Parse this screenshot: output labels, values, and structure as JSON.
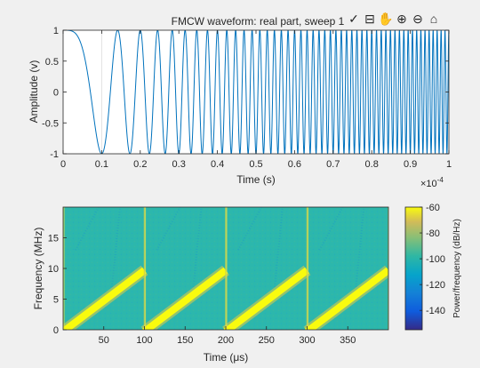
{
  "figure": {
    "background": "#f0f0f0",
    "toolbar": [
      {
        "name": "brush-icon",
        "glyph": "✓"
      },
      {
        "name": "datatips-icon",
        "glyph": "⊟"
      },
      {
        "name": "pan-icon",
        "glyph": "✋"
      },
      {
        "name": "zoom-in-icon",
        "glyph": "⊕"
      },
      {
        "name": "zoom-out-icon",
        "glyph": "⊖"
      },
      {
        "name": "home-icon",
        "glyph": "⌂"
      }
    ]
  },
  "chart_data": [
    {
      "type": "line",
      "title": "FMCW waveform: real part, sweep 1",
      "xlabel": "Time (s)",
      "ylabel": "Amplitude (v)",
      "x_exponent": "×10",
      "x_exponent_power": "-4",
      "xlim": [
        0,
        0.0001
      ],
      "ylim": [
        -1,
        1
      ],
      "xticks": [
        0,
        1e-05,
        2e-05,
        3e-05,
        4e-05,
        5e-05,
        6e-05,
        7e-05,
        8e-05,
        9e-05,
        0.0001
      ],
      "xtick_labels": [
        "0",
        "0.1",
        "0.2",
        "0.3",
        "0.4",
        "0.5",
        "0.6",
        "0.7",
        "0.8",
        "0.9",
        "1"
      ],
      "yticks": [
        -1,
        -0.5,
        0,
        0.5,
        1
      ],
      "ytick_labels": [
        "-1",
        "-0.5",
        "0",
        "0.5",
        "1"
      ],
      "grid": "x-at-0.1e-4 only",
      "series": [
        {
          "color": "#0072bd",
          "function": "cos(2*pi*(f0*t + k*t^2/2))",
          "f0_hz": 0,
          "sweep_bandwidth_hz": 1000000,
          "sweep_time_s": 0.0001
        }
      ]
    },
    {
      "type": "heatmap",
      "xlabel": "Time (μs)",
      "ylabel": "Frequency (MHz)",
      "xlim": [
        0,
        400
      ],
      "ylim": [
        0,
        20
      ],
      "xticks": [
        50,
        100,
        150,
        200,
        250,
        300,
        350
      ],
      "xtick_labels": [
        "50",
        "100",
        "150",
        "200",
        "250",
        "300",
        "350"
      ],
      "yticks": [
        0,
        5,
        10,
        15
      ],
      "ytick_labels": [
        "0",
        "5",
        "10",
        "15"
      ],
      "colorbar": {
        "label": "Power/frequency (dB/Hz)",
        "range": [
          -155,
          -60
        ],
        "ticks": [
          -60,
          -80,
          -100,
          -120,
          -140
        ],
        "tick_labels": [
          "-60",
          "-80",
          "-100",
          "-120",
          "-140"
        ],
        "colormap": "parula"
      },
      "sweeps": [
        {
          "t_start": 0,
          "t_end": 100,
          "f_start": 0,
          "f_end": 10
        },
        {
          "t_start": 100,
          "t_end": 200,
          "f_start": 0,
          "f_end": 10
        },
        {
          "t_start": 200,
          "t_end": 300,
          "f_start": 0,
          "f_end": 10
        },
        {
          "t_start": 300,
          "t_end": 400,
          "f_start": 0,
          "f_end": 10
        }
      ],
      "background_level_db": -108,
      "peak_level_db": -62
    }
  ]
}
